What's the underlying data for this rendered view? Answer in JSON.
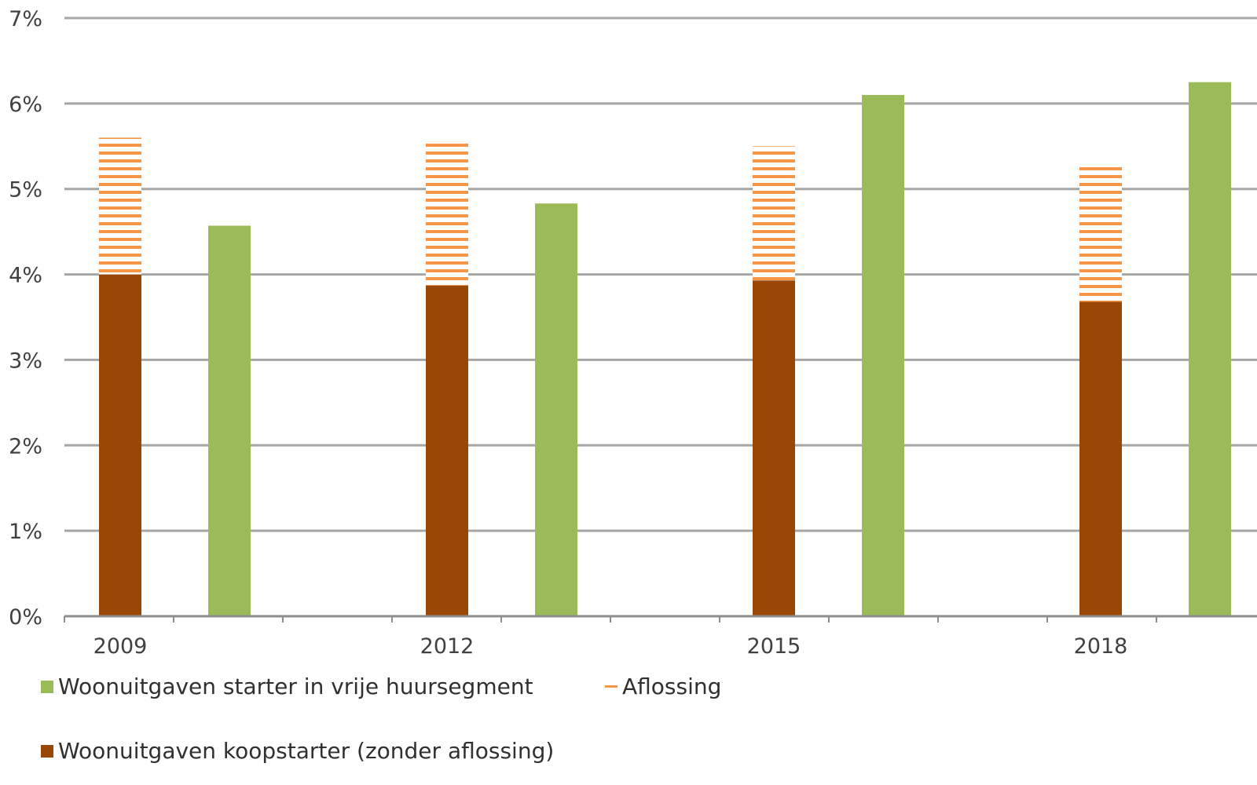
{
  "chart_data": {
    "type": "bar",
    "stacked_first_bar": true,
    "categories": [
      "2009",
      "2012",
      "2015",
      "2018"
    ],
    "series": [
      {
        "name": "Woonuitgaven koopstarter (zonder aflossing)",
        "values": [
          4.0,
          3.87,
          3.93,
          3.68
        ],
        "color": "#994707"
      },
      {
        "name": "Aflossing",
        "values": [
          1.6,
          1.7,
          1.57,
          1.6
        ],
        "color": "#f79646",
        "pattern": "horizontal-stripes"
      },
      {
        "name": "Woonuitgaven starter in vrije huursegment",
        "values": [
          4.57,
          4.83,
          6.1,
          6.25
        ],
        "color": "#9bbb59"
      }
    ],
    "y_ticks": [
      "0%",
      "1%",
      "2%",
      "3%",
      "4%",
      "5%",
      "6%",
      "7%"
    ],
    "ylim": [
      0,
      7
    ],
    "grid": true,
    "legend_position": "bottom"
  },
  "legend": {
    "rent": "Woonuitgaven starter in vrije huursegment",
    "repay": "Aflossing",
    "buy": "Woonuitgaven koopstarter (zonder aflossing)"
  }
}
